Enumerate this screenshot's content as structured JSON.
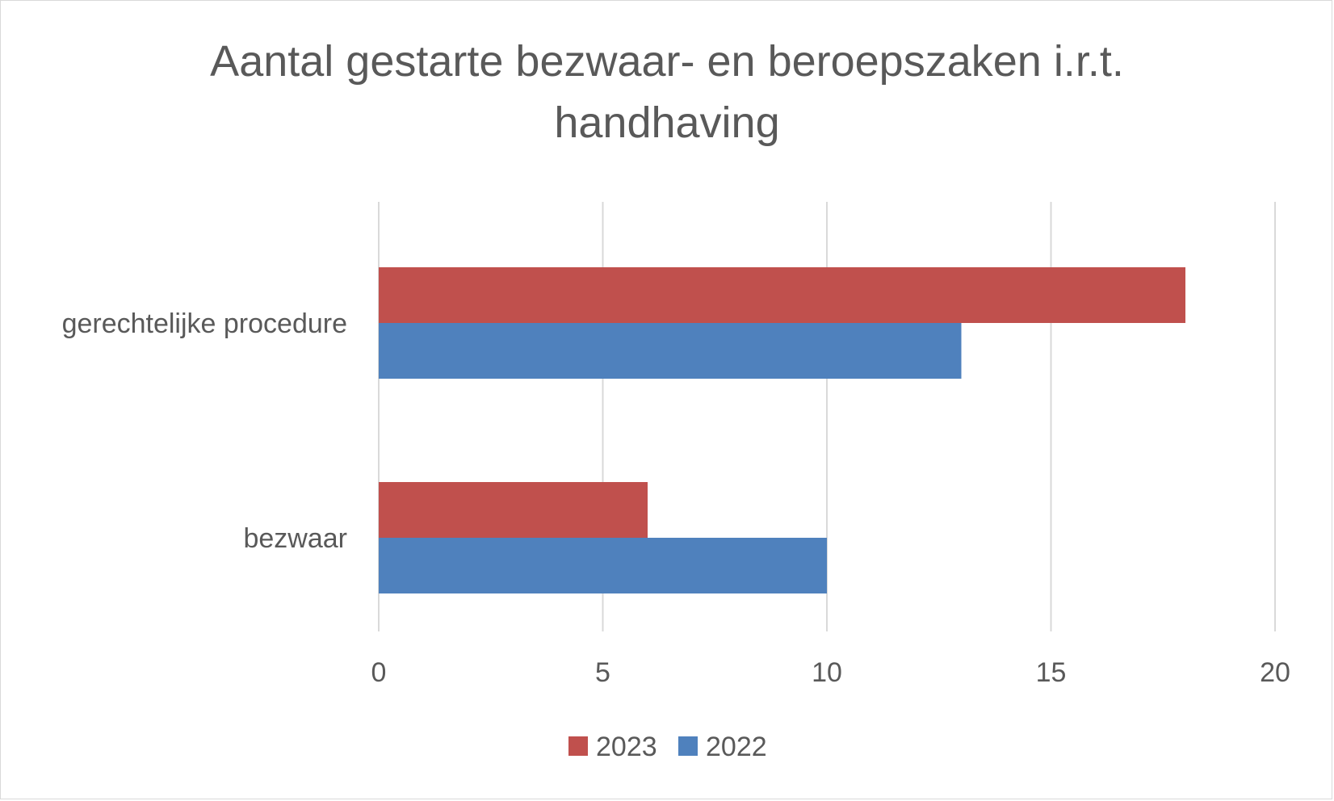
{
  "chart_data": {
    "type": "bar",
    "orientation": "horizontal",
    "title": "Aantal gestarte bezwaar- en beroepszaken i.r.t. handhaving",
    "categories": [
      "gerechtelijke procedure",
      "bezwaar"
    ],
    "series": [
      {
        "name": "2023",
        "color": "#c0504d",
        "values": [
          18,
          6
        ]
      },
      {
        "name": "2022",
        "color": "#4f81bd",
        "values": [
          13,
          10
        ]
      }
    ],
    "xlim": [
      0,
      20
    ],
    "x_ticks": [
      "0",
      "5",
      "10",
      "15",
      "20"
    ],
    "grid": true,
    "legend_position": "bottom"
  }
}
